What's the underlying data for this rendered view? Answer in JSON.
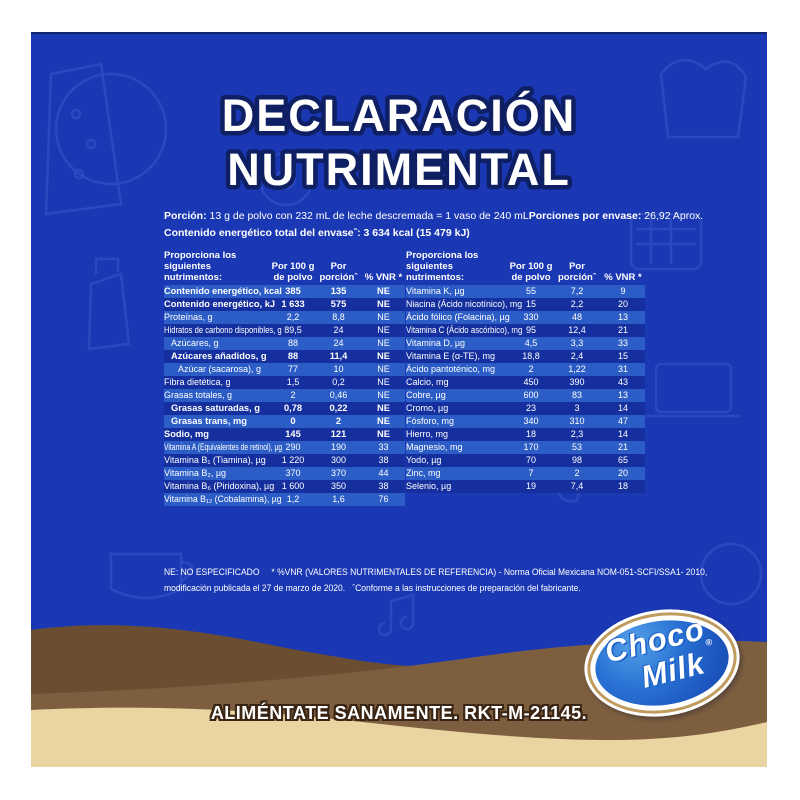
{
  "label": {
    "title_line1": "DECLARACIÓN",
    "title_line2": "NUTRIMENTAL",
    "serving": {
      "portion_label": "Porción:",
      "portion_text": " 13 g de polvo con 232 mL de leche descremada = 1 vaso de 240 mL",
      "per_container_label": "Porciones por envase:",
      "per_container_value": " 26,92 Aprox.",
      "energy_total_label": "Contenido energético total del envaseˆ: ",
      "energy_total_value": " 3 634 kcal   (15 479 kJ)"
    },
    "table_header": {
      "nutrients_l1": "Proporciona los",
      "nutrients_l2": "siguientes nutrimentos:",
      "per100_l1": "Por 100 g",
      "per100_l2": "de polvo",
      "portion": "Por porciónˆ",
      "vnr": "% VNR *"
    },
    "left_rows": [
      {
        "name": "Contenido energético, kcal",
        "per100": "385",
        "portion": "135",
        "vnr": "NE",
        "bold": true,
        "indent": 0
      },
      {
        "name": "Contenido energético, kJ",
        "per100": "1 633",
        "portion": "575",
        "vnr": "NE",
        "bold": true,
        "indent": 0
      },
      {
        "name": "Proteínas, g",
        "per100": "2,2",
        "portion": "8,8",
        "vnr": "NE",
        "bold": false,
        "indent": 0
      },
      {
        "name": "Hidratos de carbono disponibles, g",
        "per100": "89,5",
        "portion": "24",
        "vnr": "NE",
        "bold": false,
        "indent": 0
      },
      {
        "name": "Azúcares, g",
        "per100": "88",
        "portion": "24",
        "vnr": "NE",
        "bold": false,
        "indent": 1
      },
      {
        "name": "Azúcares añadidos, g",
        "per100": "88",
        "portion": "11,4",
        "vnr": "NE",
        "bold": true,
        "indent": 1
      },
      {
        "name": "Azúcar (sacarosa), g",
        "per100": "77",
        "portion": "10",
        "vnr": "NE",
        "bold": false,
        "indent": 2
      },
      {
        "name": "Fibra dietética, g",
        "per100": "1,5",
        "portion": "0,2",
        "vnr": "NE",
        "bold": false,
        "indent": 0
      },
      {
        "name": "Grasas totales, g",
        "per100": "2",
        "portion": "0,46",
        "vnr": "NE",
        "bold": false,
        "indent": 0
      },
      {
        "name": "Grasas saturadas, g",
        "per100": "0,78",
        "portion": "0,22",
        "vnr": "NE",
        "bold": true,
        "indent": 1
      },
      {
        "name": "Grasas trans, mg",
        "per100": "0",
        "portion": "2",
        "vnr": "NE",
        "bold": true,
        "indent": 1
      },
      {
        "name": "Sodio, mg",
        "per100": "145",
        "portion": "121",
        "vnr": "NE",
        "bold": true,
        "indent": 0
      },
      {
        "name": "Vitamina A (Equivalentes de retinol), µg",
        "per100": "290",
        "portion": "190",
        "vnr": "33",
        "bold": false,
        "indent": 0
      },
      {
        "name": "Vitamina B₁ (Tiamina), µg",
        "per100": "1 220",
        "portion": "300",
        "vnr": "38",
        "bold": false,
        "indent": 0
      },
      {
        "name": "Vitamina B₂, µg",
        "per100": "370",
        "portion": "370",
        "vnr": "44",
        "bold": false,
        "indent": 0
      },
      {
        "name": "Vitamina B₆ (Piridoxina), µg",
        "per100": "1 600",
        "portion": "350",
        "vnr": "38",
        "bold": false,
        "indent": 0
      },
      {
        "name": "Vitamina B₁₂ (Cobalamina), µg",
        "per100": "1,2",
        "portion": "1,6",
        "vnr": "76",
        "bold": false,
        "indent": 0
      }
    ],
    "right_rows": [
      {
        "name": "Vitamina K, µg",
        "per100": "55",
        "portion": "7,2",
        "vnr": "9",
        "bold": false,
        "indent": 0
      },
      {
        "name": "Niacina (Ácido nicotínico), mg",
        "per100": "15",
        "portion": "2,2",
        "vnr": "20",
        "bold": false,
        "indent": 0
      },
      {
        "name": "Ácido fólico (Folacina), µg",
        "per100": "330",
        "portion": "48",
        "vnr": "13",
        "bold": false,
        "indent": 0
      },
      {
        "name": "Vitamina C (Ácido ascórbico), mg",
        "per100": "95",
        "portion": "12,4",
        "vnr": "21",
        "bold": false,
        "indent": 0
      },
      {
        "name": "Vitamina D, µg",
        "per100": "4,5",
        "portion": "3,3",
        "vnr": "33",
        "bold": false,
        "indent": 0
      },
      {
        "name": "Vitamina E (α-TE), mg",
        "per100": "18,8",
        "portion": "2,4",
        "vnr": "15",
        "bold": false,
        "indent": 0
      },
      {
        "name": "Ácido pantoténico, mg",
        "per100": "2",
        "portion": "1,22",
        "vnr": "31",
        "bold": false,
        "indent": 0
      },
      {
        "name": "Calcio, mg",
        "per100": "450",
        "portion": "390",
        "vnr": "43",
        "bold": false,
        "indent": 0
      },
      {
        "name": "Cobre, µg",
        "per100": "600",
        "portion": "83",
        "vnr": "13",
        "bold": false,
        "indent": 0
      },
      {
        "name": "Cromo, µg",
        "per100": "23",
        "portion": "3",
        "vnr": "14",
        "bold": false,
        "indent": 0
      },
      {
        "name": "Fósforo, mg",
        "per100": "340",
        "portion": "310",
        "vnr": "47",
        "bold": false,
        "indent": 0
      },
      {
        "name": "Hierro, mg",
        "per100": "18",
        "portion": "2,3",
        "vnr": "14",
        "bold": false,
        "indent": 0
      },
      {
        "name": "Magnesio, mg",
        "per100": "170",
        "portion": "53",
        "vnr": "21",
        "bold": false,
        "indent": 0
      },
      {
        "name": "Yodo, µg",
        "per100": "70",
        "portion": "98",
        "vnr": "65",
        "bold": false,
        "indent": 0
      },
      {
        "name": "Zinc, mg",
        "per100": "7",
        "portion": "2",
        "vnr": "20",
        "bold": false,
        "indent": 0
      },
      {
        "name": "Selenio, µg",
        "per100": "19",
        "portion": "7,4",
        "vnr": "18",
        "bold": false,
        "indent": 0
      }
    ],
    "footnote_line1": "NE: NO ESPECIFICADO     * %VNR (VALORES NUTRIMENTALES DE REFERENCIA) - Norma Oficial Mexicana NOM-051-SCFI/SSA1- 2010,",
    "footnote_line2": "modificación publicada el 27 de marzo de 2020.   ˆConforme a las instrucciones de preparación del fabricante.",
    "bottom_text": "ALIMÉNTATE SANAMENTE. RKT-M-21145.",
    "logo": {
      "word1": "Choco",
      "word2": "Milk",
      "reg": "®"
    },
    "colors": {
      "blue_background": "#1b38b4",
      "row_stripe_light": "#2c5dc6",
      "row_stripe_dark": "#15309e",
      "title_outline_navy": "#0e1f63",
      "chocolate_dark": "#6b4e32",
      "chocolate_mid": "#7d5f40",
      "cream_tan": "#e9d4a2",
      "logo_gold_ring": "#bf9b5e",
      "logo_blue": "#2a72d4",
      "text_white": "#ffffff"
    }
  }
}
